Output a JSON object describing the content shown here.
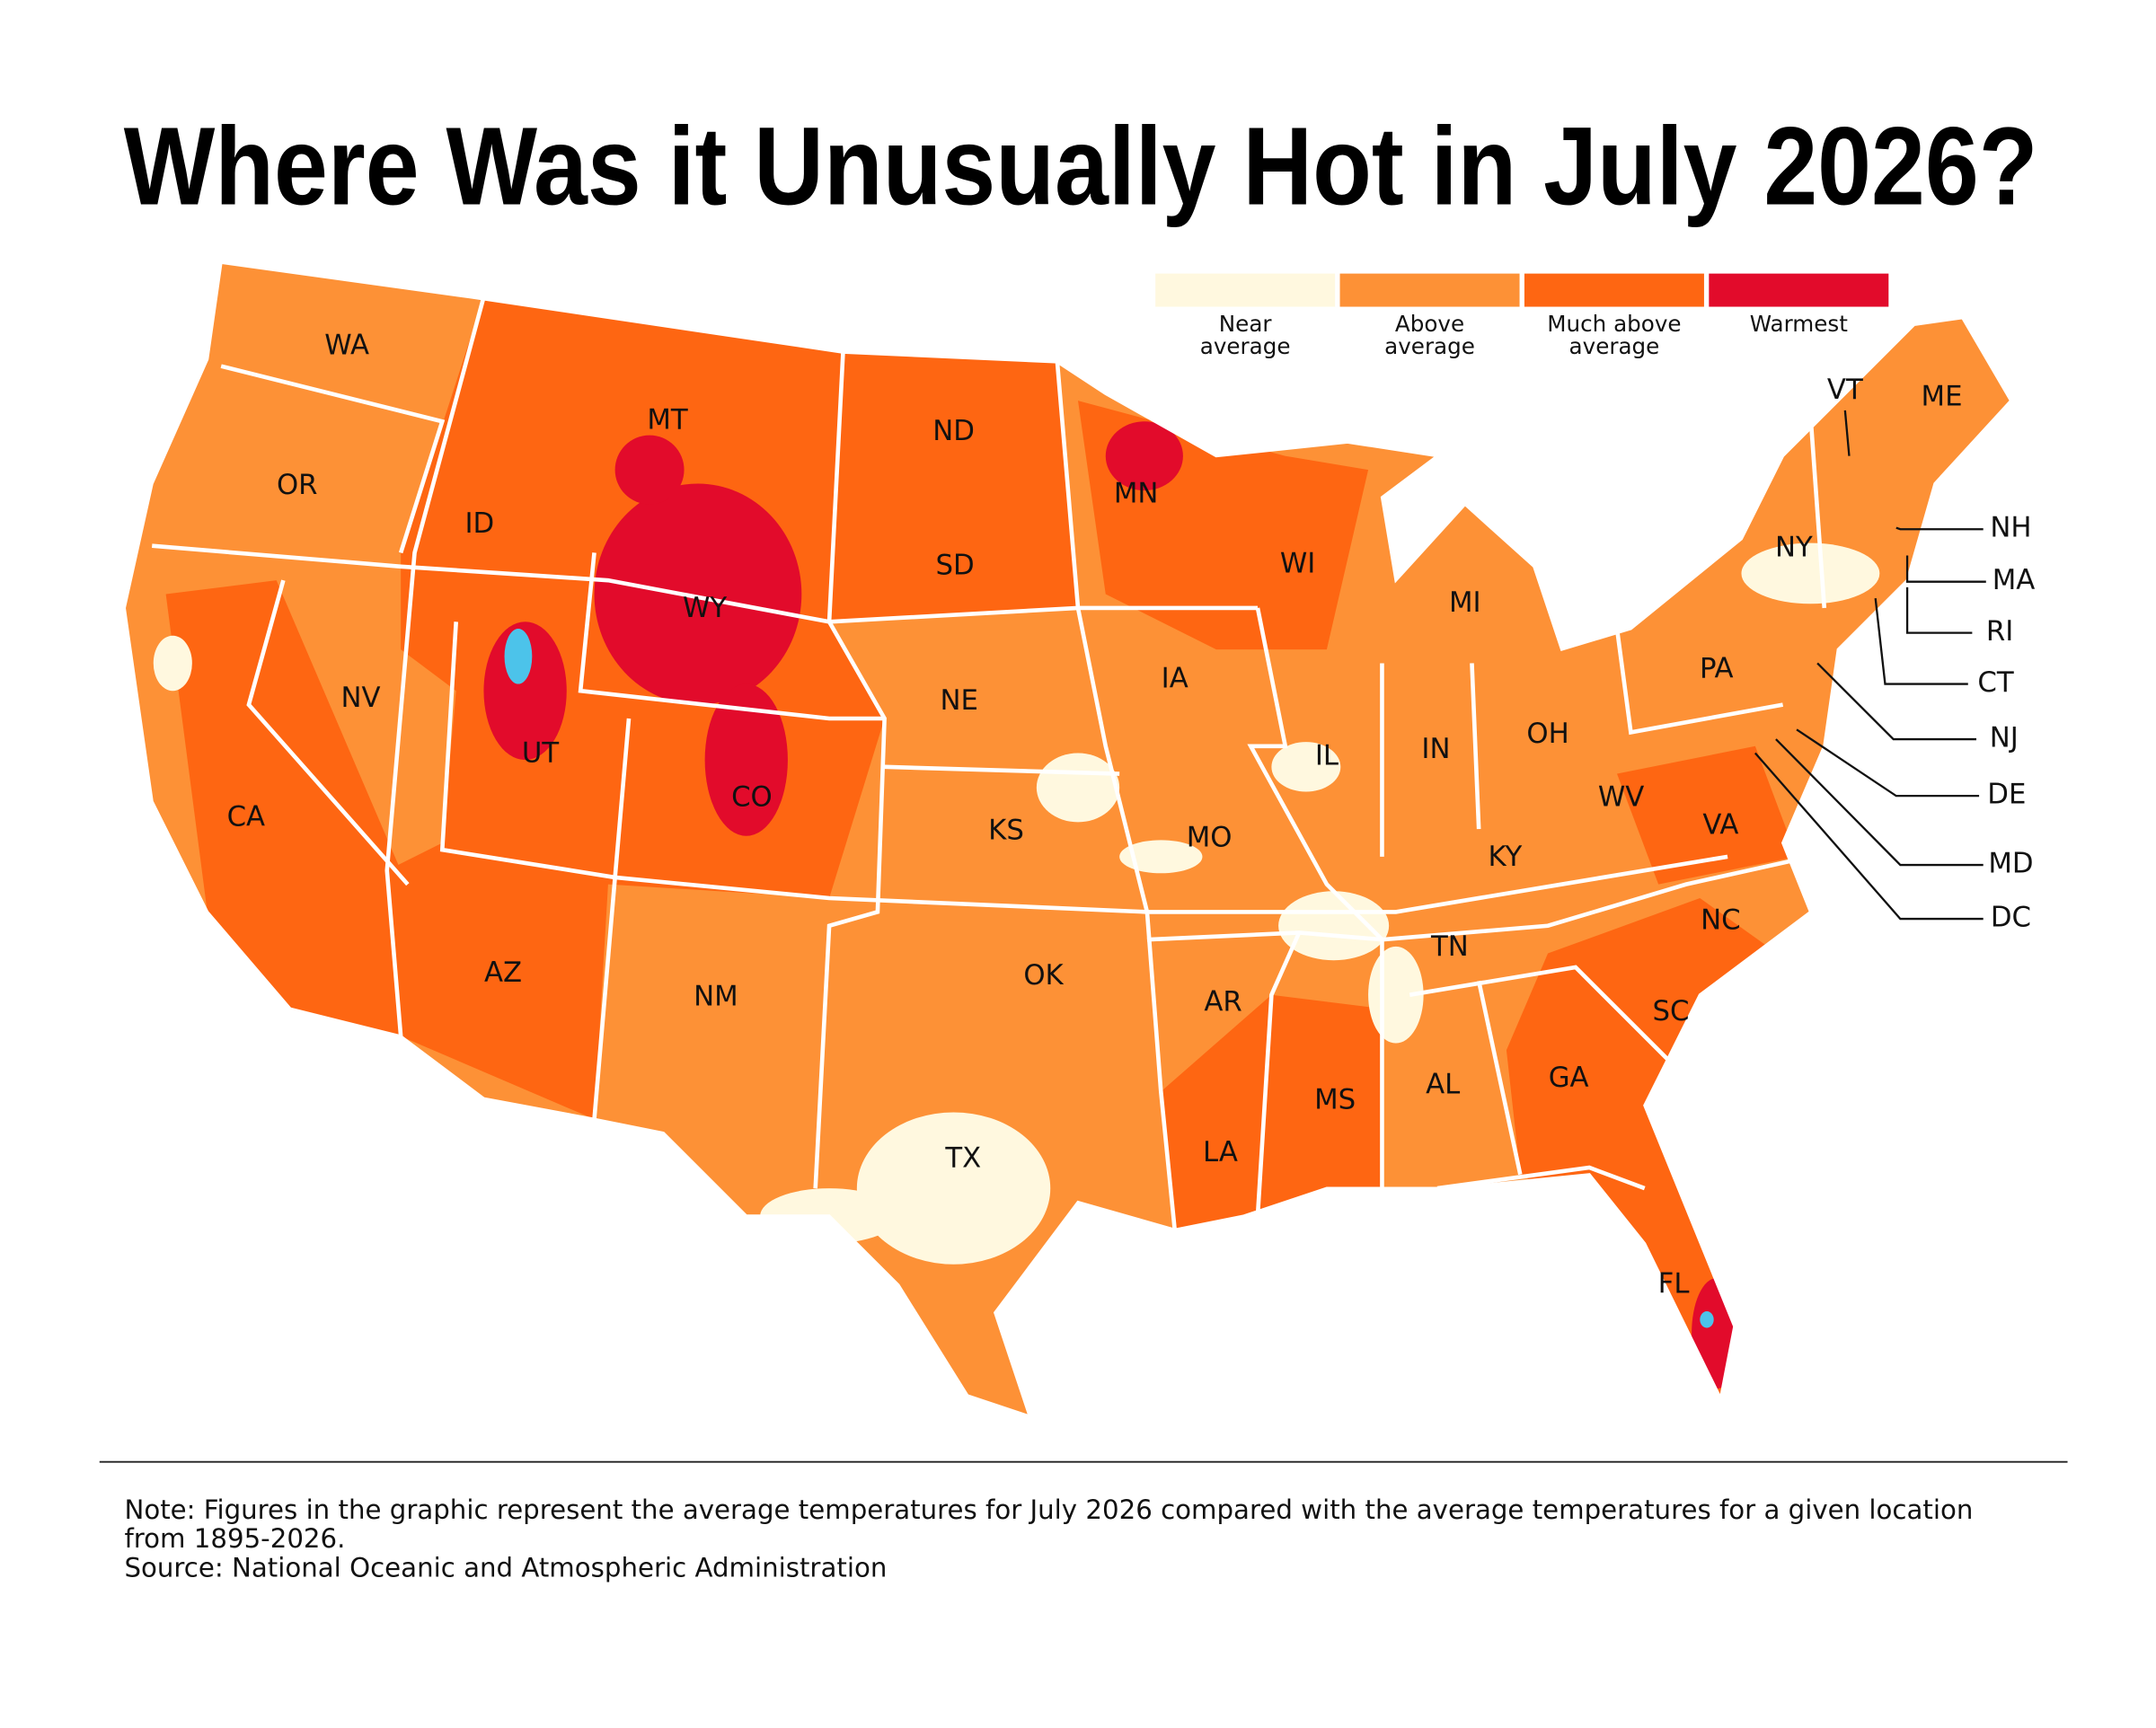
{
  "title": "Where Was it Unusually Hot in July 2026?",
  "legend": [
    {
      "label": "Near average",
      "color": "#fff8df"
    },
    {
      "label": "Above average",
      "color": "#fd9136"
    },
    {
      "label": "Much above average",
      "color": "#fe6612"
    },
    {
      "label": "Warmest",
      "color": "#e20b2b"
    }
  ],
  "states": [
    "WA",
    "OR",
    "CA",
    "NV",
    "ID",
    "MT",
    "WY",
    "UT",
    "CO",
    "AZ",
    "NM",
    "ND",
    "SD",
    "NE",
    "KS",
    "OK",
    "TX",
    "MN",
    "IA",
    "MO",
    "AR",
    "LA",
    "WI",
    "IL",
    "MI",
    "IN",
    "OH",
    "KY",
    "TN",
    "MS",
    "AL",
    "GA",
    "FL",
    "SC",
    "NC",
    "VA",
    "WV",
    "PA",
    "NY",
    "VT",
    "ME",
    "NH",
    "MA",
    "RI",
    "CT",
    "NJ",
    "DE",
    "MD",
    "DC"
  ],
  "note": "Note: Figures in the graphic represent the average temperatures for July 2026 compared with the average temperatures for a given location from 1895-2026.",
  "source": "Source: National Oceanic and Atmospheric Administration"
}
